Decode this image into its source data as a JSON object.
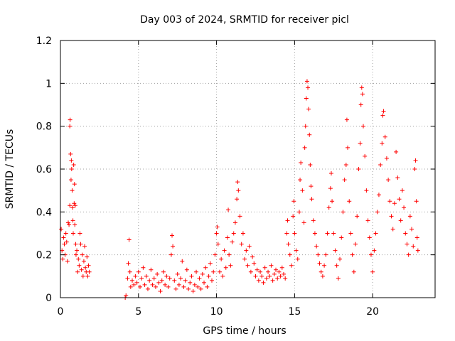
{
  "chart_data": {
    "type": "scatter",
    "title": "Day 003 of 2024, SRMTID for receiver picl",
    "xlabel": "GPS time / hours",
    "ylabel": "SRMTID / TECUs",
    "xlim": [
      0,
      24
    ],
    "ylim": [
      0,
      1.2
    ],
    "xticks": [
      0,
      5,
      10,
      15,
      20
    ],
    "xtick_labels": [
      "0",
      "5",
      "10",
      "15",
      "20"
    ],
    "yticks": [
      0,
      0.2,
      0.4,
      0.6,
      0.8,
      1,
      1.2
    ],
    "ytick_labels": [
      "0",
      "0.2",
      "0.4",
      "0.6",
      "0.8",
      "1",
      "1.2"
    ],
    "grid": true,
    "marker": "plus",
    "color": "#ff0000",
    "series": [
      {
        "name": "SRMTID",
        "points": [
          [
            0.05,
            0.32
          ],
          [
            0.1,
            0.22
          ],
          [
            0.15,
            0.18
          ],
          [
            0.2,
            0.28
          ],
          [
            0.25,
            0.25
          ],
          [
            0.3,
            0.2
          ],
          [
            0.35,
            0.3
          ],
          [
            0.4,
            0.26
          ],
          [
            0.45,
            0.17
          ],
          [
            0.5,
            0.35
          ],
          [
            0.55,
            0.34
          ],
          [
            0.6,
            0.43
          ],
          [
            0.6,
            0.8
          ],
          [
            0.62,
            0.83
          ],
          [
            0.65,
            0.67
          ],
          [
            0.68,
            0.55
          ],
          [
            0.7,
            0.64
          ],
          [
            0.72,
            0.6
          ],
          [
            0.75,
            0.5
          ],
          [
            0.78,
            0.42
          ],
          [
            0.8,
            0.36
          ],
          [
            0.82,
            0.3
          ],
          [
            0.85,
            0.62
          ],
          [
            0.88,
            0.44
          ],
          [
            0.9,
            0.53
          ],
          [
            0.92,
            0.34
          ],
          [
            0.95,
            0.43
          ],
          [
            0.98,
            0.25
          ],
          [
            1.0,
            0.2
          ],
          [
            1.05,
            0.22
          ],
          [
            1.1,
            0.12
          ],
          [
            1.15,
            0.18
          ],
          [
            1.2,
            0.15
          ],
          [
            1.25,
            0.3
          ],
          [
            1.3,
            0.25
          ],
          [
            1.35,
            0.13
          ],
          [
            1.4,
            0.2
          ],
          [
            1.45,
            0.1
          ],
          [
            1.5,
            0.17
          ],
          [
            1.55,
            0.24
          ],
          [
            1.6,
            0.14
          ],
          [
            1.65,
            0.12
          ],
          [
            1.7,
            0.19
          ],
          [
            1.75,
            0.1
          ],
          [
            1.8,
            0.15
          ],
          [
            1.85,
            0.12
          ],
          [
            4.15,
            0.0
          ],
          [
            4.2,
            0.01
          ],
          [
            4.3,
            0.09
          ],
          [
            4.35,
            0.16
          ],
          [
            4.4,
            0.27
          ],
          [
            4.45,
            0.12
          ],
          [
            4.5,
            0.05
          ],
          [
            4.6,
            0.08
          ],
          [
            4.7,
            0.06
          ],
          [
            4.8,
            0.1
          ],
          [
            4.9,
            0.07
          ],
          [
            5.0,
            0.12
          ],
          [
            5.1,
            0.05
          ],
          [
            5.2,
            0.09
          ],
          [
            5.3,
            0.14
          ],
          [
            5.4,
            0.06
          ],
          [
            5.5,
            0.1
          ],
          [
            5.6,
            0.04
          ],
          [
            5.7,
            0.08
          ],
          [
            5.8,
            0.13
          ],
          [
            5.9,
            0.06
          ],
          [
            6.0,
            0.09
          ],
          [
            6.1,
            0.05
          ],
          [
            6.2,
            0.11
          ],
          [
            6.3,
            0.07
          ],
          [
            6.4,
            0.03
          ],
          [
            6.5,
            0.08
          ],
          [
            6.6,
            0.12
          ],
          [
            6.7,
            0.06
          ],
          [
            6.8,
            0.1
          ],
          [
            6.9,
            0.05
          ],
          [
            7.0,
            0.09
          ],
          [
            7.1,
            0.2
          ],
          [
            7.15,
            0.29
          ],
          [
            7.2,
            0.24
          ],
          [
            7.3,
            0.08
          ],
          [
            7.4,
            0.04
          ],
          [
            7.5,
            0.11
          ],
          [
            7.6,
            0.06
          ],
          [
            7.7,
            0.09
          ],
          [
            7.8,
            0.17
          ],
          [
            7.9,
            0.05
          ],
          [
            8.0,
            0.08
          ],
          [
            8.1,
            0.13
          ],
          [
            8.2,
            0.04
          ],
          [
            8.3,
            0.07
          ],
          [
            8.4,
            0.1
          ],
          [
            8.5,
            0.03
          ],
          [
            8.6,
            0.06
          ],
          [
            8.7,
            0.12
          ],
          [
            8.8,
            0.05
          ],
          [
            8.9,
            0.09
          ],
          [
            9.0,
            0.04
          ],
          [
            9.1,
            0.11
          ],
          [
            9.2,
            0.07
          ],
          [
            9.3,
            0.14
          ],
          [
            9.4,
            0.05
          ],
          [
            9.5,
            0.1
          ],
          [
            9.6,
            0.16
          ],
          [
            9.7,
            0.08
          ],
          [
            9.8,
            0.12
          ],
          [
            9.9,
            0.2
          ],
          [
            10.0,
            0.3
          ],
          [
            10.05,
            0.33
          ],
          [
            10.1,
            0.25
          ],
          [
            10.2,
            0.12
          ],
          [
            10.3,
            0.18
          ],
          [
            10.4,
            0.1
          ],
          [
            10.5,
            0.22
          ],
          [
            10.6,
            0.14
          ],
          [
            10.7,
            0.28
          ],
          [
            10.75,
            0.41
          ],
          [
            10.8,
            0.2
          ],
          [
            10.9,
            0.15
          ],
          [
            11.0,
            0.26
          ],
          [
            11.1,
            0.3
          ],
          [
            11.2,
            0.35
          ],
          [
            11.3,
            0.46
          ],
          [
            11.35,
            0.54
          ],
          [
            11.4,
            0.5
          ],
          [
            11.5,
            0.38
          ],
          [
            11.6,
            0.25
          ],
          [
            11.7,
            0.3
          ],
          [
            11.8,
            0.18
          ],
          [
            11.9,
            0.22
          ],
          [
            12.0,
            0.15
          ],
          [
            12.1,
            0.24
          ],
          [
            12.2,
            0.12
          ],
          [
            12.3,
            0.19
          ],
          [
            12.4,
            0.16
          ],
          [
            12.5,
            0.1
          ],
          [
            12.6,
            0.13
          ],
          [
            12.7,
            0.08
          ],
          [
            12.8,
            0.12
          ],
          [
            12.9,
            0.1
          ],
          [
            13.0,
            0.07
          ],
          [
            13.1,
            0.14
          ],
          [
            13.2,
            0.09
          ],
          [
            13.3,
            0.12
          ],
          [
            13.4,
            0.1
          ],
          [
            13.5,
            0.15
          ],
          [
            13.6,
            0.08
          ],
          [
            13.7,
            0.11
          ],
          [
            13.8,
            0.13
          ],
          [
            13.9,
            0.09
          ],
          [
            14.0,
            0.12
          ],
          [
            14.1,
            0.1
          ],
          [
            14.2,
            0.14
          ],
          [
            14.3,
            0.11
          ],
          [
            14.4,
            0.09
          ],
          [
            14.5,
            0.3
          ],
          [
            14.55,
            0.36
          ],
          [
            14.6,
            0.25
          ],
          [
            14.7,
            0.2
          ],
          [
            14.8,
            0.15
          ],
          [
            14.9,
            0.38
          ],
          [
            14.95,
            0.45
          ],
          [
            15.0,
            0.3
          ],
          [
            15.1,
            0.22
          ],
          [
            15.2,
            0.18
          ],
          [
            15.3,
            0.4
          ],
          [
            15.35,
            0.55
          ],
          [
            15.4,
            0.63
          ],
          [
            15.5,
            0.5
          ],
          [
            15.6,
            0.35
          ],
          [
            15.65,
            0.7
          ],
          [
            15.7,
            0.8
          ],
          [
            15.75,
            0.93
          ],
          [
            15.8,
            1.01
          ],
          [
            15.85,
            0.98
          ],
          [
            15.9,
            0.88
          ],
          [
            15.95,
            0.76
          ],
          [
            16.0,
            0.62
          ],
          [
            16.05,
            0.52
          ],
          [
            16.1,
            0.46
          ],
          [
            16.2,
            0.36
          ],
          [
            16.3,
            0.3
          ],
          [
            16.4,
            0.24
          ],
          [
            16.5,
            0.2
          ],
          [
            16.6,
            0.16
          ],
          [
            16.7,
            0.12
          ],
          [
            16.8,
            0.1
          ],
          [
            16.9,
            0.15
          ],
          [
            17.0,
            0.2
          ],
          [
            17.1,
            0.3
          ],
          [
            17.2,
            0.42
          ],
          [
            17.3,
            0.51
          ],
          [
            17.35,
            0.58
          ],
          [
            17.4,
            0.45
          ],
          [
            17.5,
            0.3
          ],
          [
            17.6,
            0.22
          ],
          [
            17.7,
            0.15
          ],
          [
            17.8,
            0.09
          ],
          [
            17.9,
            0.18
          ],
          [
            18.0,
            0.28
          ],
          [
            18.1,
            0.4
          ],
          [
            18.2,
            0.55
          ],
          [
            18.3,
            0.62
          ],
          [
            18.35,
            0.83
          ],
          [
            18.4,
            0.7
          ],
          [
            18.5,
            0.45
          ],
          [
            18.6,
            0.3
          ],
          [
            18.7,
            0.2
          ],
          [
            18.8,
            0.12
          ],
          [
            18.9,
            0.25
          ],
          [
            19.0,
            0.38
          ],
          [
            19.1,
            0.6
          ],
          [
            19.2,
            0.72
          ],
          [
            19.25,
            0.9
          ],
          [
            19.3,
            0.98
          ],
          [
            19.35,
            0.95
          ],
          [
            19.4,
            0.8
          ],
          [
            19.5,
            0.66
          ],
          [
            19.6,
            0.5
          ],
          [
            19.7,
            0.36
          ],
          [
            19.8,
            0.28
          ],
          [
            19.9,
            0.2
          ],
          [
            20.0,
            0.12
          ],
          [
            20.1,
            0.22
          ],
          [
            20.2,
            0.3
          ],
          [
            20.3,
            0.4
          ],
          [
            20.4,
            0.48
          ],
          [
            20.5,
            0.62
          ],
          [
            20.6,
            0.72
          ],
          [
            20.65,
            0.85
          ],
          [
            20.7,
            0.87
          ],
          [
            20.8,
            0.75
          ],
          [
            20.9,
            0.65
          ],
          [
            21.0,
            0.55
          ],
          [
            21.1,
            0.45
          ],
          [
            21.2,
            0.38
          ],
          [
            21.3,
            0.32
          ],
          [
            21.4,
            0.44
          ],
          [
            21.5,
            0.68
          ],
          [
            21.6,
            0.56
          ],
          [
            21.7,
            0.46
          ],
          [
            21.8,
            0.36
          ],
          [
            21.9,
            0.5
          ],
          [
            22.0,
            0.42
          ],
          [
            22.1,
            0.3
          ],
          [
            22.2,
            0.25
          ],
          [
            22.3,
            0.2
          ],
          [
            22.4,
            0.38
          ],
          [
            22.5,
            0.32
          ],
          [
            22.6,
            0.24
          ],
          [
            22.7,
            0.6
          ],
          [
            22.75,
            0.64
          ],
          [
            22.8,
            0.45
          ],
          [
            22.85,
            0.28
          ],
          [
            22.9,
            0.22
          ]
        ]
      }
    ]
  }
}
